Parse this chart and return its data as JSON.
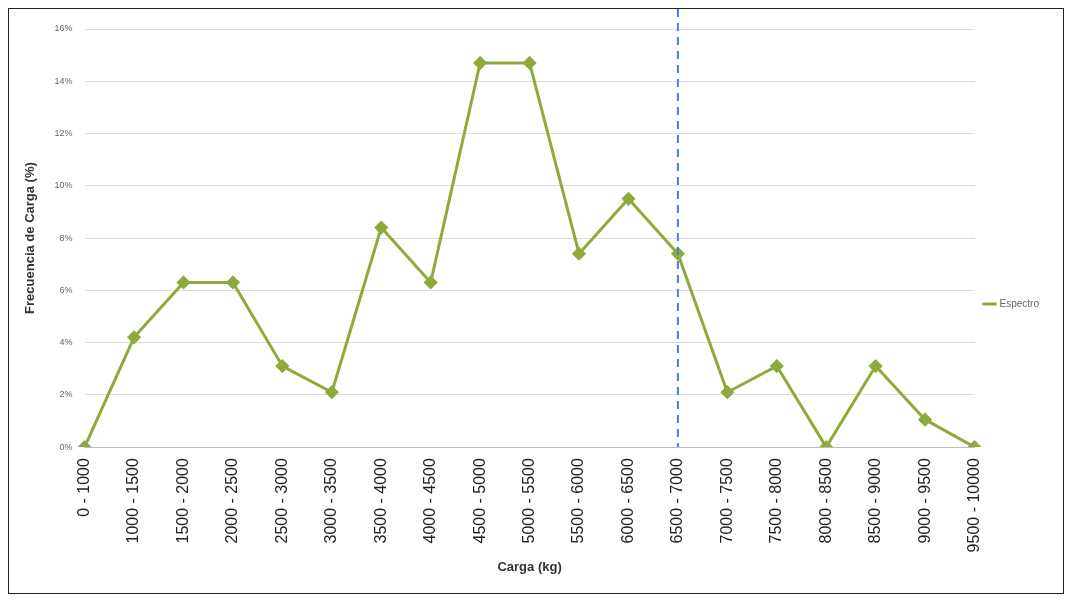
{
  "chart_data": {
    "type": "line",
    "xlabel": "Carga (kg)",
    "ylabel": "Frecuencia de Carga (%)",
    "categories": [
      "0 - 1000",
      "1000 - 1500",
      "1500 - 2000",
      "2000 - 2500",
      "2500 - 3000",
      "3000 - 3500",
      "3500 - 4000",
      "4000 - 4500",
      "4500 - 5000",
      "5000 - 5500",
      "5500 - 6000",
      "6000 - 6500",
      "6500 - 7000",
      "7000 - 7500",
      "7500 - 8000",
      "8000 - 8500",
      "8500 - 9000",
      "9000 - 9500",
      "9500 - 10000"
    ],
    "series": [
      {
        "name": "Espectro",
        "color": "#8faa3c",
        "values": [
          0,
          4.2,
          6.3,
          6.3,
          3.1,
          2.1,
          8.4,
          6.3,
          14.7,
          14.7,
          7.4,
          9.5,
          7.4,
          2.1,
          3.1,
          0,
          3.1,
          1.05,
          0
        ]
      }
    ],
    "ylim": [
      0,
      16
    ],
    "yticks": [
      {
        "value": 0,
        "label": "0%"
      },
      {
        "value": 2,
        "label": "2%"
      },
      {
        "value": 4,
        "label": "4%"
      },
      {
        "value": 6,
        "label": "6%"
      },
      {
        "value": 8,
        "label": "8%"
      },
      {
        "value": 10,
        "label": "10%"
      },
      {
        "value": 12,
        "label": "12%"
      },
      {
        "value": 14,
        "label": "14%"
      },
      {
        "value": 16,
        "label": "16%"
      }
    ],
    "grid": "y",
    "legend": "right",
    "marker": "diamond",
    "line_style": "solid",
    "ref_lines": [
      {
        "axis": "x",
        "value": "6500 - 7000",
        "color": "#4a7fd4",
        "line_style": "dashed"
      }
    ]
  }
}
